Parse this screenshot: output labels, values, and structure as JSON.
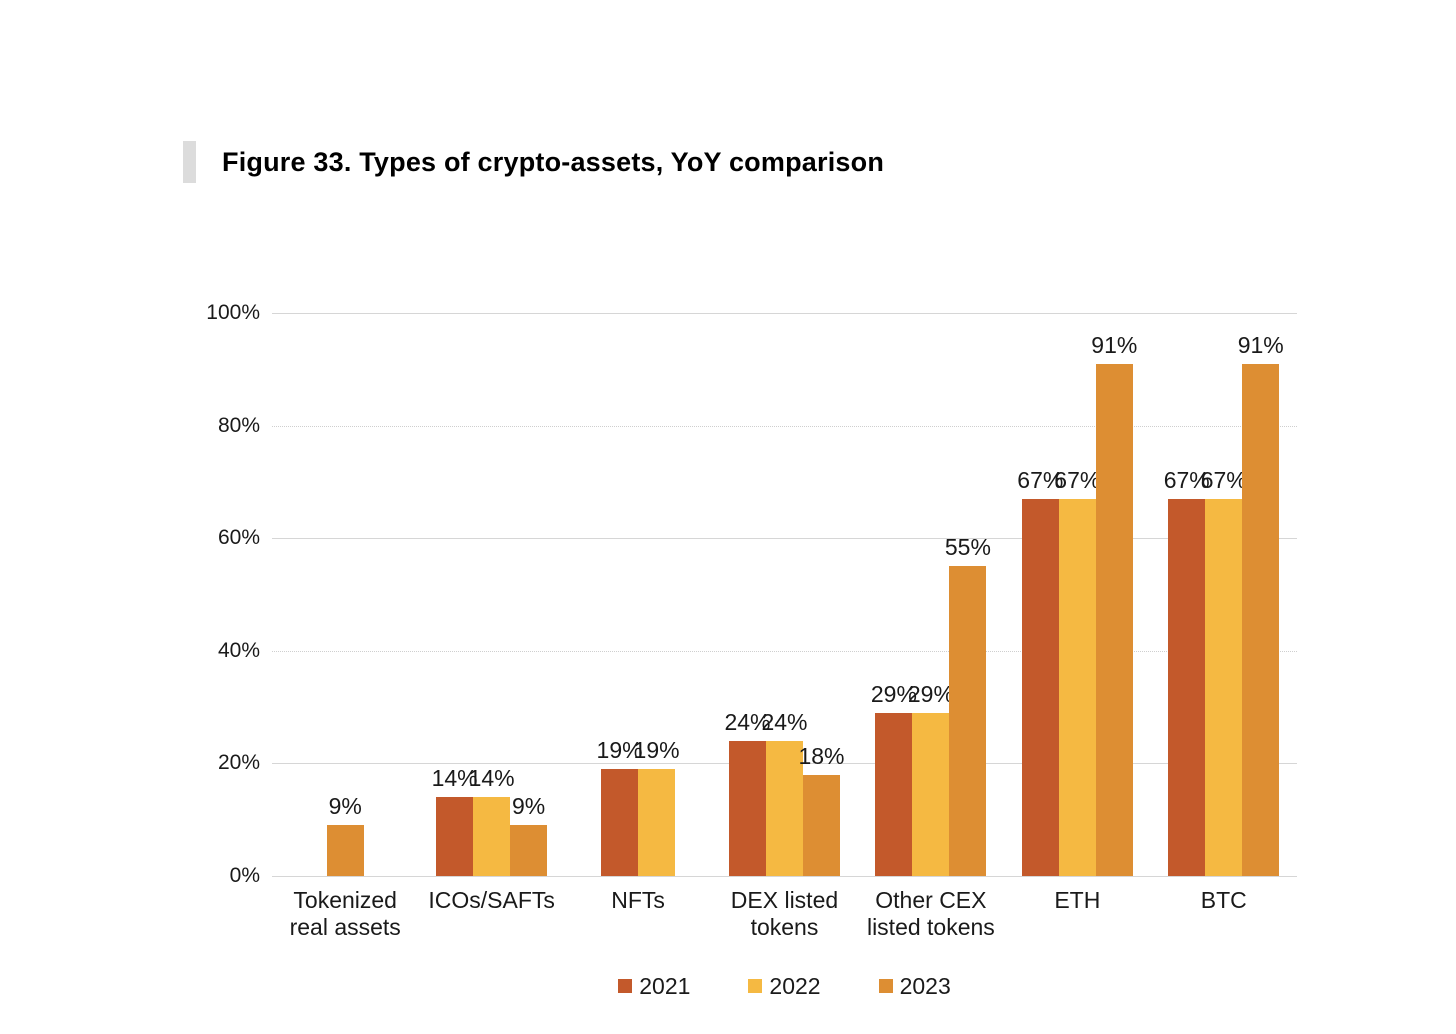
{
  "figure_header": {
    "title": "Figure 33. Types of crypto-assets, YoY comparison"
  },
  "chart_data": {
    "type": "bar",
    "title": "Figure 33. Types of crypto-assets, YoY comparison",
    "categories": [
      "Tokenized real assets",
      "ICOs/SAFTs",
      "NFTs",
      "DEX listed tokens",
      "Other CEX listed tokens",
      "ETH",
      "BTC"
    ],
    "series": [
      {
        "name": "2021",
        "color": "#C3592B",
        "values": [
          null,
          14,
          19,
          24,
          29,
          67,
          67
        ]
      },
      {
        "name": "2022",
        "color": "#F5B942",
        "values": [
          null,
          14,
          19,
          24,
          29,
          67,
          67
        ]
      },
      {
        "name": "2023",
        "color": "#DD8E33",
        "values": [
          9,
          9,
          null,
          18,
          55,
          91,
          91
        ]
      }
    ],
    "xlabel": "",
    "ylabel": "",
    "ylim": [
      0,
      100
    ],
    "yticks": [
      {
        "value": 100,
        "label": "100%"
      },
      {
        "value": 80,
        "label": "80%"
      },
      {
        "value": 60,
        "label": "60%"
      },
      {
        "value": 40,
        "label": "40%"
      },
      {
        "value": 20,
        "label": "20%"
      },
      {
        "value": 0,
        "label": "0%"
      }
    ],
    "dotted_gridlines": [
      80,
      40
    ],
    "value_suffix": "%",
    "grid": true,
    "legend_position": "bottom"
  }
}
